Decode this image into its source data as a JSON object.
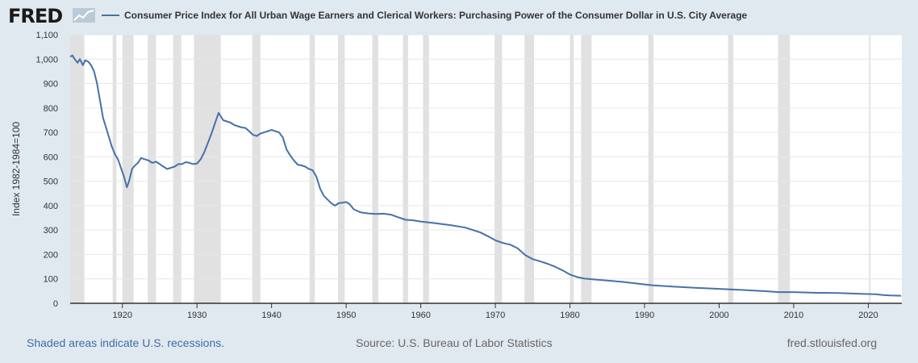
{
  "header": {
    "logo": "FRED",
    "logo_icon": "fred-graph-icon",
    "series_title": "Consumer Price Index for All Urban Wage Earners and Clerical Workers: Purchasing Power of the Consumer Dollar in U.S. City Average"
  },
  "colors": {
    "background": "#e1e9f0",
    "plot": "#ffffff",
    "line": "#4572a7",
    "recession": "#e1e1e1",
    "link": "#3d6ea8"
  },
  "chart_data": {
    "type": "line",
    "title": "Consumer Price Index for All Urban Wage Earners and Clerical Workers: Purchasing Power of the Consumer Dollar in U.S. City Average",
    "ylabel": "Index 1982-1984=100",
    "xlabel": "",
    "xlim": [
      1913.0,
      2024.5
    ],
    "ylim": [
      0,
      1100
    ],
    "y_ticks": [
      0,
      100,
      200,
      300,
      400,
      500,
      600,
      700,
      800,
      900,
      1000,
      1100
    ],
    "y_tick_labels": [
      "0",
      "100",
      "200",
      "300",
      "400",
      "500",
      "600",
      "700",
      "800",
      "900",
      "1,000",
      "1,100"
    ],
    "x_ticks": [
      1920,
      1930,
      1940,
      1950,
      1960,
      1970,
      1980,
      1990,
      2000,
      2010,
      2020
    ],
    "x_tick_labels": [
      "1920",
      "1930",
      "1940",
      "1950",
      "1960",
      "1970",
      "1980",
      "1990",
      "2000",
      "2010",
      "2020"
    ],
    "grid": "horizontal",
    "legend": "top",
    "recessions": [
      [
        1913.0,
        1914.9
      ],
      [
        1918.7,
        1919.2
      ],
      [
        1920.0,
        1921.5
      ],
      [
        1923.4,
        1924.5
      ],
      [
        1926.8,
        1927.9
      ],
      [
        1929.6,
        1933.2
      ],
      [
        1937.4,
        1938.5
      ],
      [
        1945.1,
        1945.8
      ],
      [
        1948.9,
        1949.8
      ],
      [
        1953.5,
        1954.3
      ],
      [
        1957.6,
        1958.3
      ],
      [
        1960.3,
        1961.1
      ],
      [
        1969.9,
        1970.9
      ],
      [
        1973.9,
        1975.2
      ],
      [
        1980.0,
        1980.5
      ],
      [
        1981.5,
        1982.9
      ],
      [
        1990.5,
        1991.2
      ],
      [
        2001.2,
        2001.9
      ],
      [
        2007.9,
        2009.5
      ],
      [
        2020.1,
        2020.3
      ]
    ],
    "series": [
      {
        "values": [
          [
            1913.0,
            1010
          ],
          [
            1913.3,
            1015
          ],
          [
            1913.6,
            1000
          ],
          [
            1914.0,
            985
          ],
          [
            1914.3,
            1000
          ],
          [
            1914.7,
            975
          ],
          [
            1915.0,
            995
          ],
          [
            1915.4,
            990
          ],
          [
            1915.8,
            975
          ],
          [
            1916.2,
            950
          ],
          [
            1916.6,
            900
          ],
          [
            1917.0,
            830
          ],
          [
            1917.4,
            760
          ],
          [
            1917.8,
            720
          ],
          [
            1918.2,
            680
          ],
          [
            1918.6,
            640
          ],
          [
            1919.0,
            610
          ],
          [
            1919.4,
            590
          ],
          [
            1919.8,
            555
          ],
          [
            1920.2,
            520
          ],
          [
            1920.6,
            475
          ],
          [
            1920.9,
            500
          ],
          [
            1921.3,
            550
          ],
          [
            1921.7,
            565
          ],
          [
            1922.1,
            575
          ],
          [
            1922.5,
            595
          ],
          [
            1923.0,
            590
          ],
          [
            1923.5,
            585
          ],
          [
            1924.0,
            575
          ],
          [
            1924.5,
            580
          ],
          [
            1925.0,
            570
          ],
          [
            1925.5,
            560
          ],
          [
            1926.0,
            550
          ],
          [
            1926.5,
            555
          ],
          [
            1927.0,
            560
          ],
          [
            1927.5,
            570
          ],
          [
            1928.0,
            570
          ],
          [
            1928.5,
            578
          ],
          [
            1929.0,
            575
          ],
          [
            1929.5,
            570
          ],
          [
            1930.0,
            572
          ],
          [
            1930.5,
            590
          ],
          [
            1931.0,
            620
          ],
          [
            1931.5,
            660
          ],
          [
            1932.0,
            700
          ],
          [
            1932.5,
            745
          ],
          [
            1932.9,
            780
          ],
          [
            1933.2,
            765
          ],
          [
            1933.5,
            750
          ],
          [
            1934.0,
            745
          ],
          [
            1934.5,
            740
          ],
          [
            1935.0,
            730
          ],
          [
            1935.5,
            725
          ],
          [
            1936.0,
            720
          ],
          [
            1936.5,
            718
          ],
          [
            1937.0,
            705
          ],
          [
            1937.5,
            690
          ],
          [
            1938.0,
            685
          ],
          [
            1938.5,
            695
          ],
          [
            1939.0,
            700
          ],
          [
            1939.5,
            705
          ],
          [
            1940.0,
            710
          ],
          [
            1940.5,
            705
          ],
          [
            1941.0,
            700
          ],
          [
            1941.5,
            680
          ],
          [
            1942.0,
            630
          ],
          [
            1942.5,
            605
          ],
          [
            1943.0,
            585
          ],
          [
            1943.5,
            568
          ],
          [
            1944.0,
            565
          ],
          [
            1944.5,
            560
          ],
          [
            1945.0,
            550
          ],
          [
            1945.5,
            545
          ],
          [
            1946.0,
            520
          ],
          [
            1946.5,
            470
          ],
          [
            1947.0,
            440
          ],
          [
            1947.5,
            425
          ],
          [
            1948.0,
            410
          ],
          [
            1948.5,
            400
          ],
          [
            1949.0,
            410
          ],
          [
            1949.5,
            412
          ],
          [
            1950.0,
            415
          ],
          [
            1950.5,
            405
          ],
          [
            1951.0,
            385
          ],
          [
            1951.5,
            378
          ],
          [
            1952.0,
            372
          ],
          [
            1952.5,
            370
          ],
          [
            1953.0,
            368
          ],
          [
            1954.0,
            366
          ],
          [
            1955.0,
            367
          ],
          [
            1956.0,
            363
          ],
          [
            1957.0,
            352
          ],
          [
            1958.0,
            342
          ],
          [
            1959.0,
            340
          ],
          [
            1960.0,
            335
          ],
          [
            1962.0,
            328
          ],
          [
            1964.0,
            320
          ],
          [
            1966.0,
            310
          ],
          [
            1968.0,
            290
          ],
          [
            1969.0,
            275
          ],
          [
            1970.0,
            258
          ],
          [
            1971.0,
            247
          ],
          [
            1972.0,
            240
          ],
          [
            1973.0,
            225
          ],
          [
            1974.0,
            198
          ],
          [
            1975.0,
            181
          ],
          [
            1976.0,
            172
          ],
          [
            1977.0,
            162
          ],
          [
            1978.0,
            150
          ],
          [
            1979.0,
            135
          ],
          [
            1980.0,
            118
          ],
          [
            1981.0,
            107
          ],
          [
            1982.0,
            101
          ],
          [
            1983.0,
            98
          ],
          [
            1985.0,
            93
          ],
          [
            1987.0,
            88
          ],
          [
            1989.0,
            81
          ],
          [
            1991.0,
            74
          ],
          [
            1994.0,
            68
          ],
          [
            1997.0,
            63
          ],
          [
            2000.0,
            59
          ],
          [
            2003.0,
            55
          ],
          [
            2006.0,
            50
          ],
          [
            2008.0,
            46
          ],
          [
            2010.0,
            46
          ],
          [
            2013.0,
            43
          ],
          [
            2016.0,
            42
          ],
          [
            2019.0,
            39
          ],
          [
            2021.0,
            37
          ],
          [
            2022.0,
            34
          ],
          [
            2023.0,
            32
          ],
          [
            2024.4,
            31
          ]
        ]
      }
    ]
  },
  "footer": {
    "recession_note": "Shaded areas indicate U.S. recessions.",
    "source": "Source: U.S. Bureau of Labor Statistics",
    "site": "fred.stlouisfed.org"
  }
}
